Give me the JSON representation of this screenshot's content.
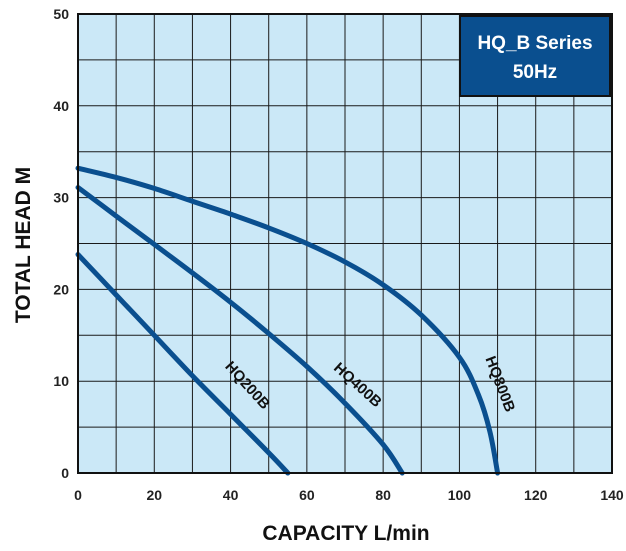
{
  "chart_data": {
    "type": "line",
    "xlabel": "CAPACITY L/min",
    "ylabel": "TOTAL HEAD M",
    "xlim": [
      0,
      140
    ],
    "ylim": [
      0,
      50
    ],
    "xticks": [
      0,
      20,
      40,
      60,
      80,
      100,
      120,
      140
    ],
    "yticks": [
      0,
      10,
      20,
      30,
      40,
      50
    ],
    "grid": true,
    "background_color": "#cbe8f7",
    "line_color": "#0a4f8f",
    "legend": {
      "lines": [
        "HQ_B Series",
        "50Hz"
      ],
      "position": "top-right",
      "color": "#0a4f8f"
    },
    "series": [
      {
        "name": "HQ200B",
        "x": [
          0,
          10,
          20,
          30,
          40,
          50,
          55
        ],
        "y": [
          23.8,
          19.4,
          15.0,
          10.6,
          6.4,
          2.2,
          0
        ]
      },
      {
        "name": "HQ400B",
        "x": [
          0,
          10,
          20,
          30,
          40,
          50,
          60,
          70,
          80,
          85
        ],
        "y": [
          31.1,
          28.0,
          24.9,
          21.8,
          18.6,
          15.2,
          11.6,
          7.6,
          3.1,
          0
        ]
      },
      {
        "name": "HQ800B",
        "x": [
          0,
          10,
          20,
          30,
          40,
          50,
          60,
          70,
          80,
          90,
          100,
          105,
          108,
          110
        ],
        "y": [
          33.2,
          32.2,
          31.0,
          29.6,
          28.2,
          26.7,
          25.0,
          23.0,
          20.5,
          17.2,
          12.6,
          8.5,
          4.5,
          0
        ]
      }
    ]
  }
}
